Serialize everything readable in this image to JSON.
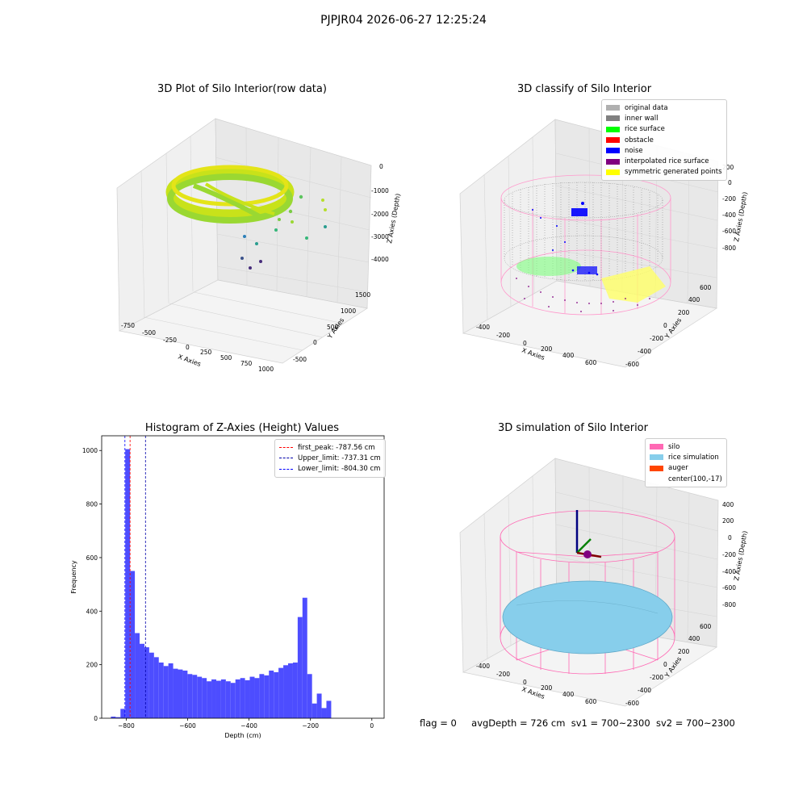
{
  "suptitle": "PJPJR04 2026-06-27 12:25:24",
  "colors": {
    "original": "#b0b0b0",
    "inner_wall": "#808080",
    "rice_surface": "#00ff00",
    "obstacle": "#ff0000",
    "noise": "#0000ff",
    "interp": "#800080",
    "symmetric": "#ffff00",
    "silo": "#ff69b4",
    "rice_sim": "#87ceeb",
    "auger": "#ff4500",
    "hist_bar": "#4d4dff"
  },
  "panel1": {
    "title": "3D Plot of Silo Interior(row data)",
    "xlabel": "X Axies",
    "ylabel": "Y Axies",
    "zlabel": "Z Axies (Depth)",
    "xticks": [
      "-750",
      "-500",
      "-250",
      "0",
      "250",
      "500",
      "750",
      "1000"
    ],
    "yticks": [
      "-500",
      "0",
      "500",
      "1000",
      "1500"
    ],
    "zticks": [
      "0",
      "-1000",
      "-2000",
      "-3000",
      "-4000"
    ]
  },
  "panel2": {
    "title": "3D classify of Silo Interior",
    "xlabel": "X Axies",
    "ylabel": "Y Axies",
    "zlabel": "Z Axies (Depth)",
    "xticks": [
      "-400",
      "-200",
      "0",
      "200",
      "400",
      "600"
    ],
    "yticks": [
      "-600",
      "-400",
      "-200",
      "0",
      "200",
      "400",
      "600"
    ],
    "zticks": [
      "200",
      "0",
      "-200",
      "-400",
      "-600",
      "-800"
    ],
    "legend": [
      {
        "label": "original data",
        "color": "#b0b0b0"
      },
      {
        "label": "inner wall",
        "color": "#808080"
      },
      {
        "label": "rice surface",
        "color": "#00ff00"
      },
      {
        "label": "obstacle",
        "color": "#ff0000"
      },
      {
        "label": "noise",
        "color": "#0000ff"
      },
      {
        "label": "interpolated rice surface",
        "color": "#800080"
      },
      {
        "label": "symmetric generated points",
        "color": "#ffff00"
      }
    ]
  },
  "chart_data": {
    "type": "bar",
    "title": "Histogram of Z-Axies (Height) Values",
    "xlabel": "Depth (cm)",
    "ylabel": "Frequency",
    "xlim": [
      -880,
      40
    ],
    "ylim": [
      0,
      1055
    ],
    "xticks": [
      -800,
      -600,
      -400,
      -200,
      0
    ],
    "yticks": [
      0,
      200,
      400,
      600,
      800,
      1000
    ],
    "bin_start": -850,
    "bin_width": 15.6,
    "values": [
      6,
      4,
      35,
      1005,
      550,
      318,
      278,
      265,
      245,
      228,
      208,
      195,
      205,
      185,
      182,
      178,
      165,
      162,
      155,
      150,
      138,
      145,
      140,
      145,
      138,
      132,
      145,
      150,
      142,
      155,
      150,
      165,
      160,
      178,
      172,
      188,
      198,
      205,
      208,
      378,
      450,
      165,
      55,
      92,
      38,
      65
    ],
    "vlines": [
      {
        "x": -787.56,
        "color": "#ff0000",
        "label": "first_peak: -787.56 cm"
      },
      {
        "x": -737.31,
        "color": "#0000aa",
        "label": "Upper_limit: -737.31 cm"
      },
      {
        "x": -804.3,
        "color": "#0000ff",
        "label": "Lower_limit: -804.30 cm"
      }
    ],
    "legend_position": "upper right"
  },
  "panel4": {
    "title": "3D simulation of Silo Interior",
    "xlabel": "X Axies",
    "ylabel": "Y Axies",
    "zlabel": "Z Axies (Depth)",
    "xticks": [
      "-400",
      "-200",
      "0",
      "200",
      "400",
      "600"
    ],
    "yticks": [
      "-600",
      "-400",
      "-200",
      "0",
      "200",
      "400",
      "600"
    ],
    "zticks": [
      "400",
      "200",
      "0",
      "-200",
      "-400",
      "-600",
      "-800"
    ],
    "legend": [
      {
        "label": "silo",
        "color": "#ff69b4"
      },
      {
        "label": "rice simulation",
        "color": "#87ceeb"
      },
      {
        "label": "auger",
        "color": "#ff4500"
      },
      {
        "label": "center(100,-17)",
        "color": ""
      }
    ]
  },
  "status": {
    "flag": "flag = 0",
    "avg": "avgDepth = 726 cm",
    "sv1": "sv1 = 700~2300",
    "sv2": "sv2 = 700~2300"
  }
}
